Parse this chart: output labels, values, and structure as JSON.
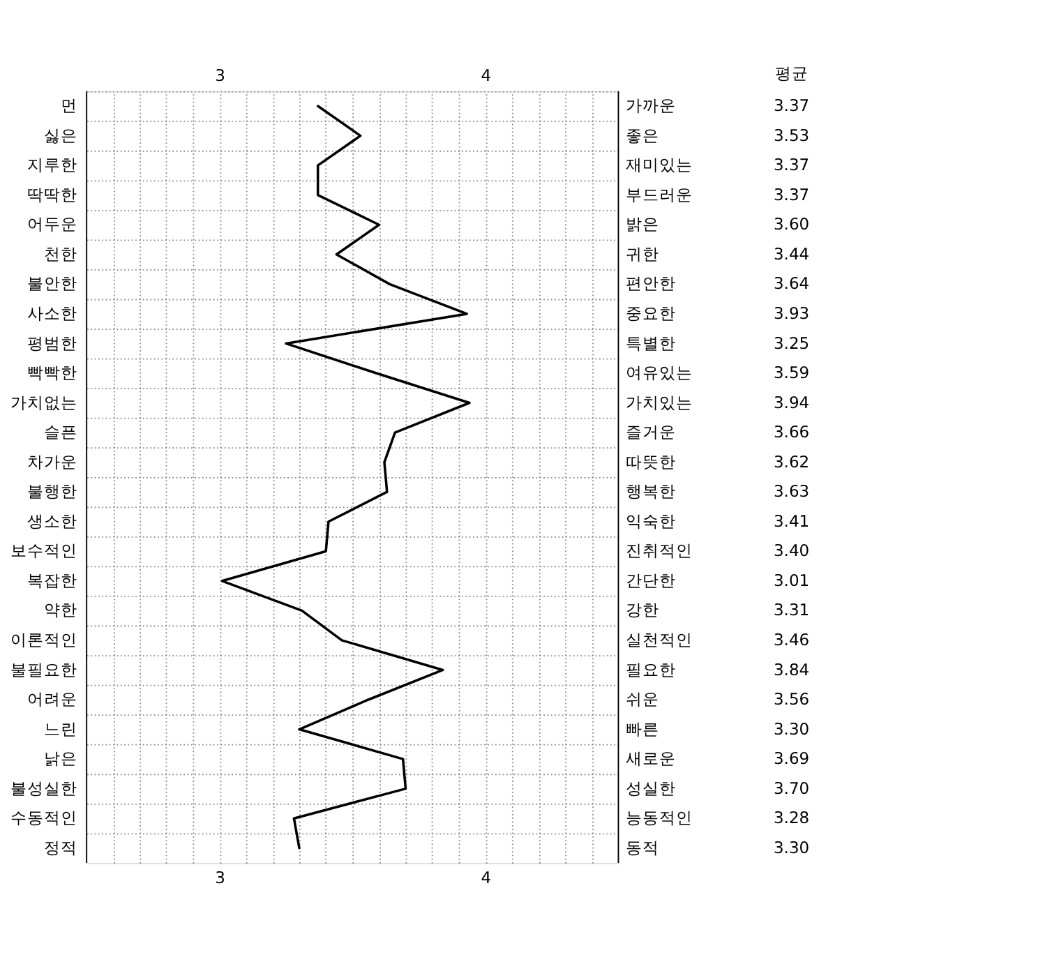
{
  "chart_data": {
    "type": "line",
    "orientation": "horizontal",
    "categories": [
      "먼",
      "싫은",
      "지루한",
      "딱딱한",
      "어두운",
      "천한",
      "불안한",
      "사소한",
      "평범한",
      "빡빡한",
      "가치없는",
      "슬픈",
      "차가운",
      "불행한",
      "생소한",
      "보수적인",
      "복잡한",
      "약한",
      "이론적인",
      "불필요한",
      "어려운",
      "느린",
      "낡은",
      "불성실한",
      "수동적인",
      "정적"
    ],
    "y2_categories": [
      "가까운",
      "좋은",
      "재미있는",
      "부드러운",
      "밝은",
      "귀한",
      "편안한",
      "중요한",
      "특별한",
      "여유있는",
      "가치있는",
      "즐거운",
      "따뜻한",
      "행복한",
      "익숙한",
      "진취적인",
      "간단한",
      "강한",
      "실천적인",
      "필요한",
      "쉬운",
      "빠른",
      "새로운",
      "성실한",
      "능동적인",
      "동적"
    ],
    "series": [
      {
        "color": "#000000",
        "values": [
          3.37,
          3.53,
          3.37,
          3.37,
          3.6,
          3.44,
          3.64,
          3.93,
          3.25,
          3.59,
          3.94,
          3.66,
          3.62,
          3.63,
          3.41,
          3.4,
          3.01,
          3.31,
          3.46,
          3.84,
          3.56,
          3.3,
          3.69,
          3.7,
          3.28,
          3.3
        ],
        "value_labels": [
          "3.37",
          "3.53",
          "3.37",
          "3.37",
          "3.60",
          "3.44",
          "3.64",
          "3.93",
          "3.25",
          "3.59",
          "3.94",
          "3.66",
          "3.62",
          "3.63",
          "3.41",
          "3.40",
          "3.01",
          "3.31",
          "3.46",
          "3.84",
          "3.56",
          "3.30",
          "3.69",
          "3.70",
          "3.28",
          "3.30"
        ]
      }
    ],
    "xlim": [
      2.5,
      4.5
    ],
    "xticks": [
      {
        "value": 2.6,
        "label": null
      },
      {
        "value": 2.7,
        "label": null
      },
      {
        "value": 2.8,
        "label": null
      },
      {
        "value": 2.9,
        "label": null
      },
      3,
      {
        "value": 3.1,
        "label": null
      },
      {
        "value": 3.2,
        "label": null
      },
      {
        "value": 3.3,
        "label": null
      },
      {
        "value": 3.4,
        "label": null
      },
      {
        "value": 3.5,
        "label": null
      },
      {
        "value": 3.6,
        "label": null
      },
      {
        "value": 3.7,
        "label": null
      },
      {
        "value": 3.8,
        "label": null
      },
      {
        "value": 3.9,
        "label": null
      },
      4,
      {
        "value": 4.1,
        "label": null
      },
      {
        "value": 4.2,
        "label": null
      },
      {
        "value": 4.3,
        "label": null
      },
      {
        "value": 4.4,
        "label": null
      }
    ],
    "x2lim": [
      2.5,
      4.5
    ],
    "x2ticks": [
      3,
      4
    ],
    "annotations": [
      "평균"
    ],
    "grid": true,
    "line_style": "solid",
    "marker": "none"
  }
}
